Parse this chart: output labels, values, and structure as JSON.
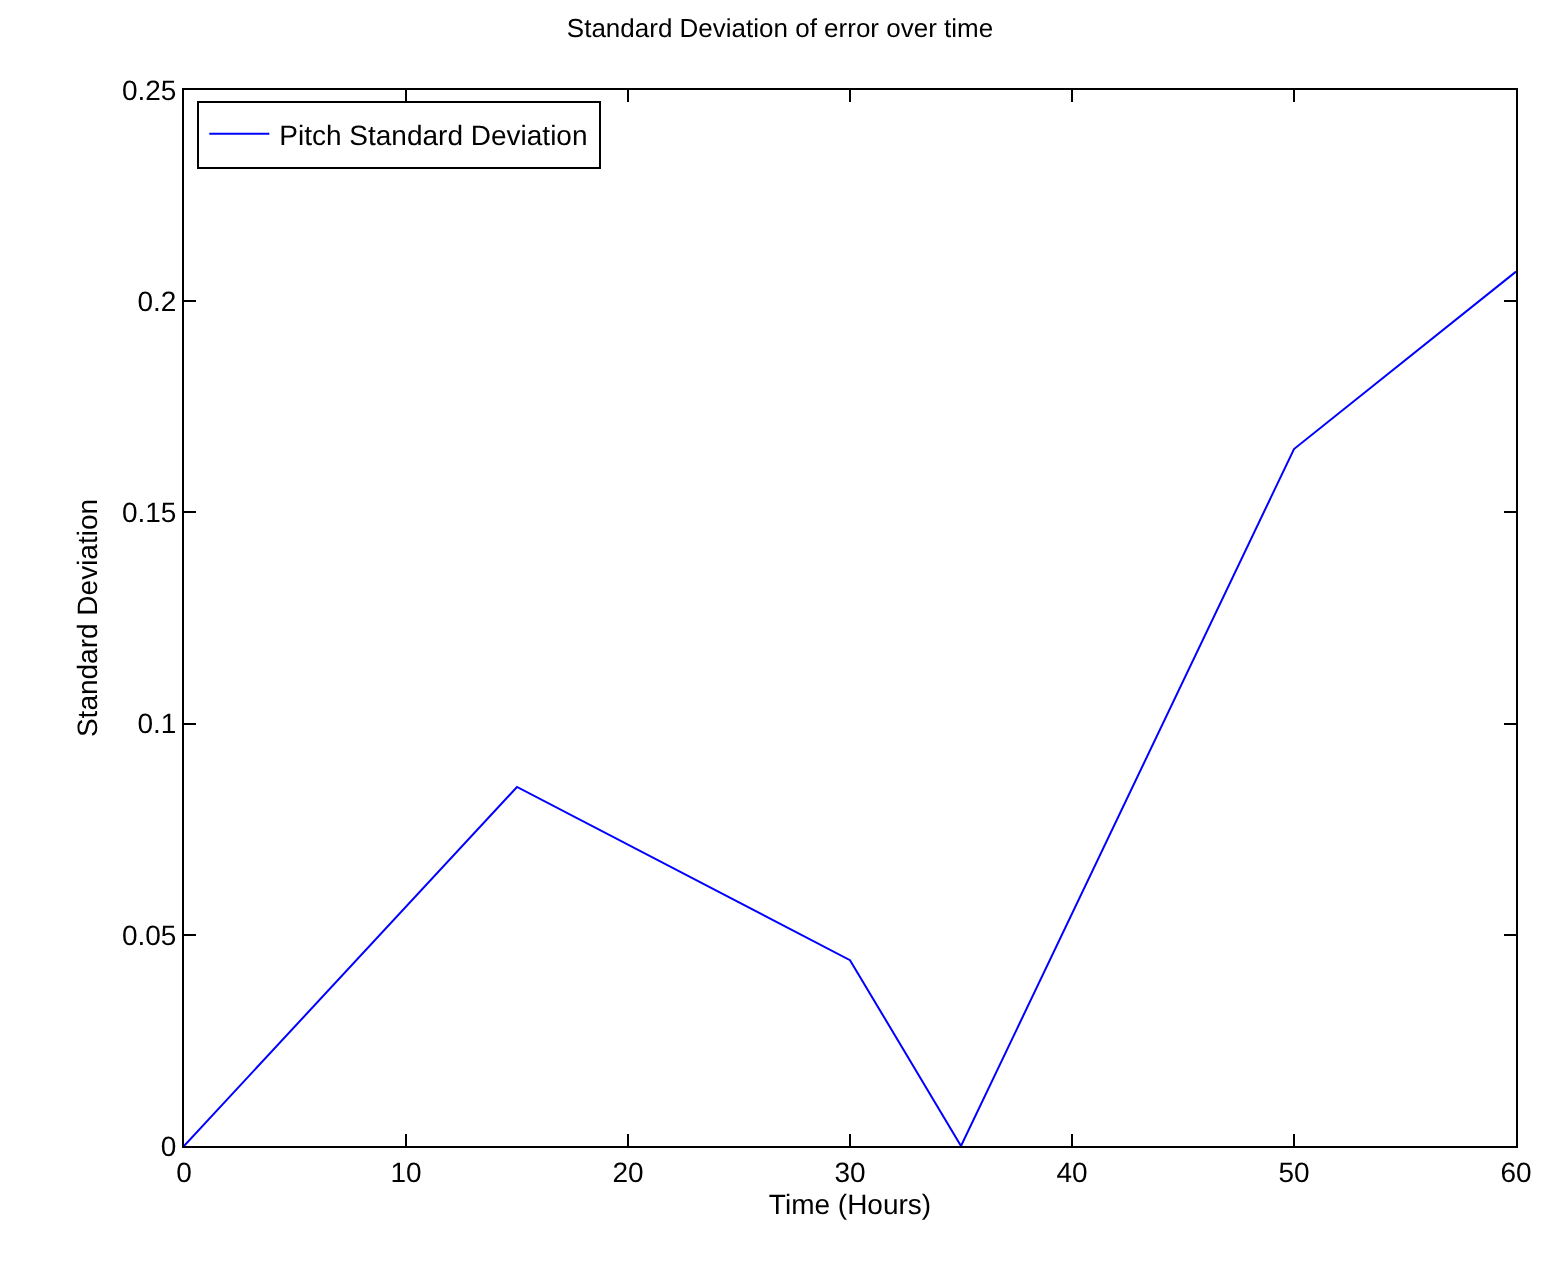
{
  "chart_data": {
    "type": "line",
    "title": "Standard Deviation of error over time",
    "xlabel": "Time (Hours)",
    "ylabel": "Standard Deviation",
    "x": [
      0,
      15,
      30,
      35,
      50,
      60
    ],
    "series": [
      {
        "name": "Pitch Standard Deviation",
        "color": "#0000ff",
        "values": [
          0,
          0.085,
          0.044,
          0,
          0.165,
          0.207
        ]
      }
    ],
    "xlim": [
      0,
      60
    ],
    "xticks": [
      0,
      10,
      20,
      30,
      40,
      50,
      60
    ],
    "ylim": [
      0,
      0.25
    ],
    "yticks": [
      0,
      0.05,
      0.1,
      0.15,
      0.2,
      0.25
    ],
    "legend": "top left",
    "marker": "none",
    "line_style": "solid"
  }
}
